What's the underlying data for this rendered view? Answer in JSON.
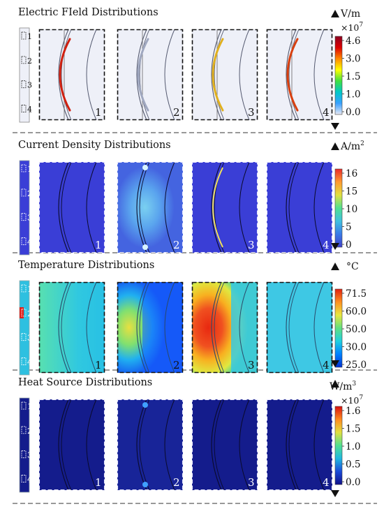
{
  "sections": [
    {
      "title": "Electric FIeld Distributions",
      "unit": "V/m",
      "multiplier": "×10",
      "multiplier_exp": "7",
      "scale_ticks": [
        "4.6",
        "3.0",
        "1.5",
        "1.0",
        "0.0"
      ],
      "scale_colors": [
        "#e8e8f2",
        "#3aa0ff",
        "#00c8c8",
        "#40e040",
        "#ffff00",
        "#ff8800",
        "#dd0000",
        "#8b0020"
      ],
      "panel_bg": [
        "#eef0f8",
        "#eef0f8",
        "#eef0f8",
        "#eef0f8"
      ],
      "border": "dashed-black",
      "thumb_labels": [
        "1",
        "2",
        "3",
        "4"
      ],
      "panels": [
        "1",
        "2",
        "3",
        "4"
      ]
    },
    {
      "title": "Current Density Distributions",
      "unit": "A/m",
      "unit_exp": "2",
      "scale_ticks": [
        "16",
        "15",
        "10",
        "5",
        "0"
      ],
      "scale_colors": [
        "#4040c8",
        "#3a7ae8",
        "#40c0e0",
        "#50e090",
        "#e0e040",
        "#ff9a30",
        "#e82a2a"
      ],
      "panel_bg": [
        "#3a3ed6",
        "#4a78e6",
        "#3a3ed6",
        "#3a3ed6"
      ],
      "border": "dashed-white",
      "thumb_labels": [
        "1",
        "2",
        "3",
        "4"
      ],
      "panels": [
        "1",
        "2",
        "3",
        "4"
      ]
    },
    {
      "title": "Temperature Distributions",
      "unit": "°C",
      "scale_ticks": [
        "71.5",
        "60.0",
        "50.0",
        "30.0",
        "25.0"
      ],
      "scale_colors": [
        "#0030d0",
        "#0080ff",
        "#20d0e0",
        "#60e080",
        "#e8e840",
        "#ff9020",
        "#e02010"
      ],
      "panel_bg": [
        "#2ec0e0",
        "#1a6cff",
        "#f0c020",
        "#38c8e0"
      ],
      "border": "dashed-black",
      "thumb_labels": [
        "1",
        "2",
        "3",
        "4"
      ],
      "panels": [
        "1",
        "2",
        "3",
        "4"
      ]
    },
    {
      "title": "Heat Source Distributions",
      "unit": "W/m",
      "unit_exp": "3",
      "multiplier": "×10",
      "multiplier_exp": "7",
      "scale_ticks": [
        "1.6",
        "1.5",
        "1.0",
        "0.5",
        "0.0"
      ],
      "scale_colors": [
        "#10108a",
        "#1a4ad8",
        "#20b8e0",
        "#50e090",
        "#e0e040",
        "#ff8a20",
        "#d81010"
      ],
      "panel_bg": [
        "#141c8c",
        "#182498",
        "#141c8c",
        "#141c8c"
      ],
      "border": "dashed-white",
      "thumb_labels": [
        "1",
        "2",
        "3",
        "4"
      ],
      "panels": [
        "1",
        "2",
        "3",
        "4"
      ]
    }
  ]
}
